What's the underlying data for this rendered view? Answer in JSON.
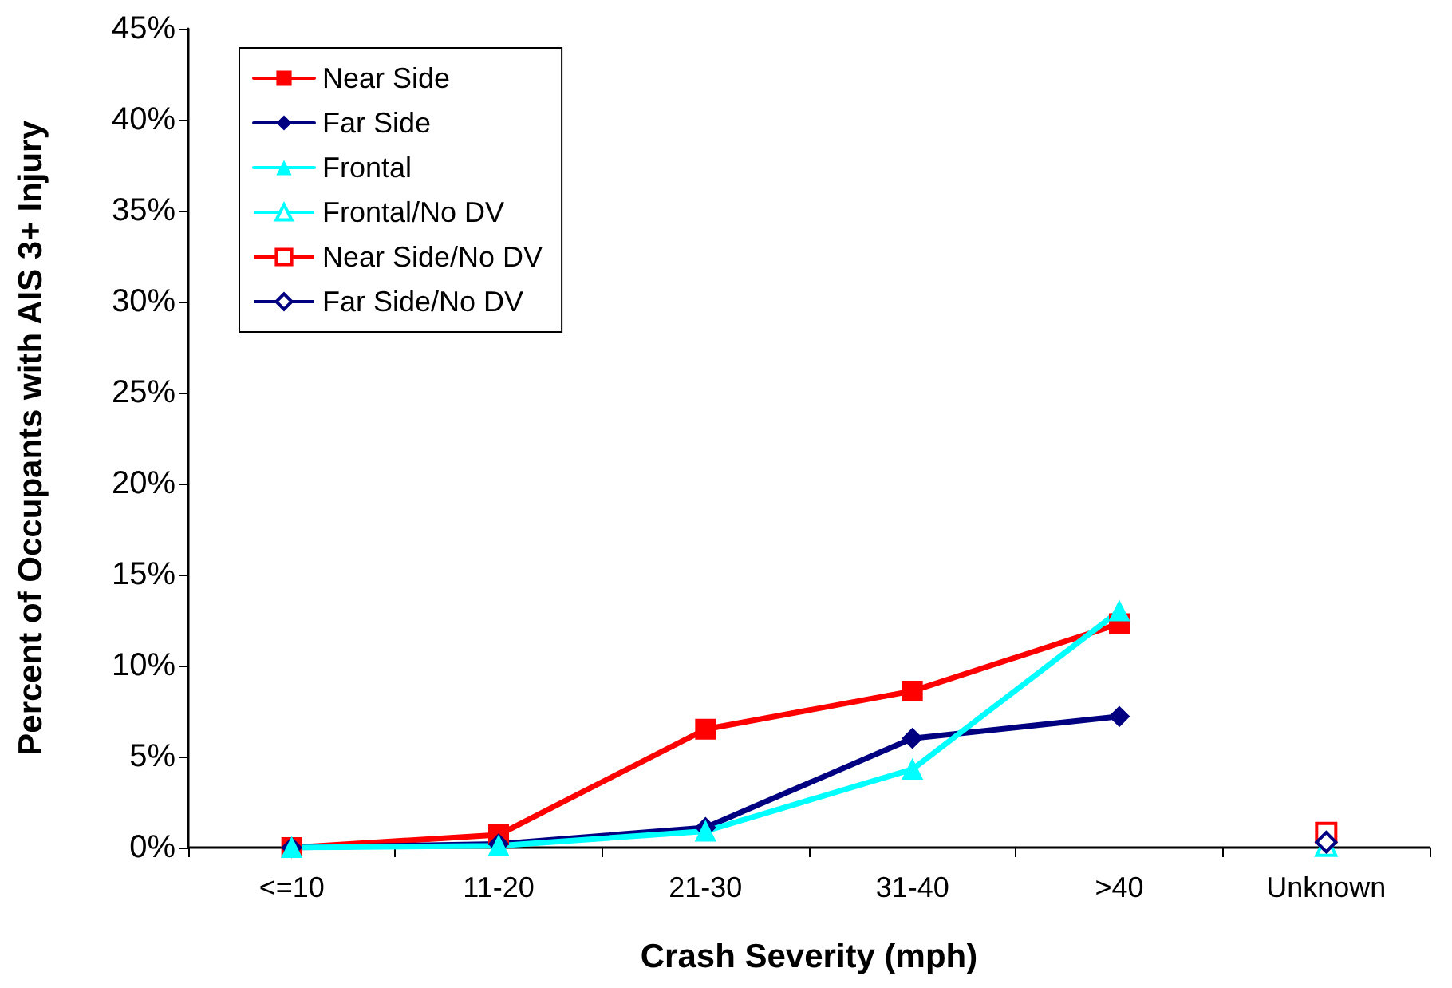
{
  "chart_data": {
    "type": "line",
    "xlabel": "Crash Severity (mph)",
    "ylabel": "Percent of Occupants with AIS 3+ Injury",
    "categories": [
      "<=10",
      "11-20",
      "21-30",
      "31-40",
      ">40",
      "Unknown"
    ],
    "ylim": [
      0,
      45
    ],
    "yticks": [
      {
        "value": 0,
        "label": "0%"
      },
      {
        "value": 5,
        "label": "5%"
      },
      {
        "value": 10,
        "label": "10%"
      },
      {
        "value": 15,
        "label": "15%"
      },
      {
        "value": 20,
        "label": "20%"
      },
      {
        "value": 25,
        "label": "25%"
      },
      {
        "value": 30,
        "label": "30%"
      },
      {
        "value": 35,
        "label": "35%"
      },
      {
        "value": 40,
        "label": "40%"
      },
      {
        "value": 45,
        "label": "45%"
      }
    ],
    "grid": false,
    "legend": "top left",
    "series": [
      {
        "name": "Near Side",
        "color": "#ff0000",
        "marker": "square",
        "values": [
          0,
          0.7,
          6.5,
          8.6,
          12.3,
          null
        ]
      },
      {
        "name": "Far Side",
        "color": "#000080",
        "marker": "diamond",
        "values": [
          0,
          0.2,
          1.1,
          6.0,
          7.2,
          null
        ]
      },
      {
        "name": "Frontal",
        "color": "#00ffff",
        "marker": "triangle",
        "values": [
          0,
          0.1,
          0.9,
          4.3,
          13.0,
          null
        ]
      },
      {
        "name": "Frontal/No DV",
        "type": "scatter",
        "color": "#00ffff",
        "marker": "triangle",
        "values": [
          null,
          null,
          null,
          null,
          null,
          0.1
        ]
      },
      {
        "name": "Near Side/No DV",
        "type": "scatter",
        "color": "#ff0000",
        "marker": "square",
        "values": [
          null,
          null,
          null,
          null,
          null,
          0.8
        ]
      },
      {
        "name": "Far Side/No DV",
        "type": "scatter",
        "color": "#000080",
        "marker": "diamond",
        "values": [
          null,
          null,
          null,
          null,
          null,
          0.3
        ]
      }
    ]
  }
}
